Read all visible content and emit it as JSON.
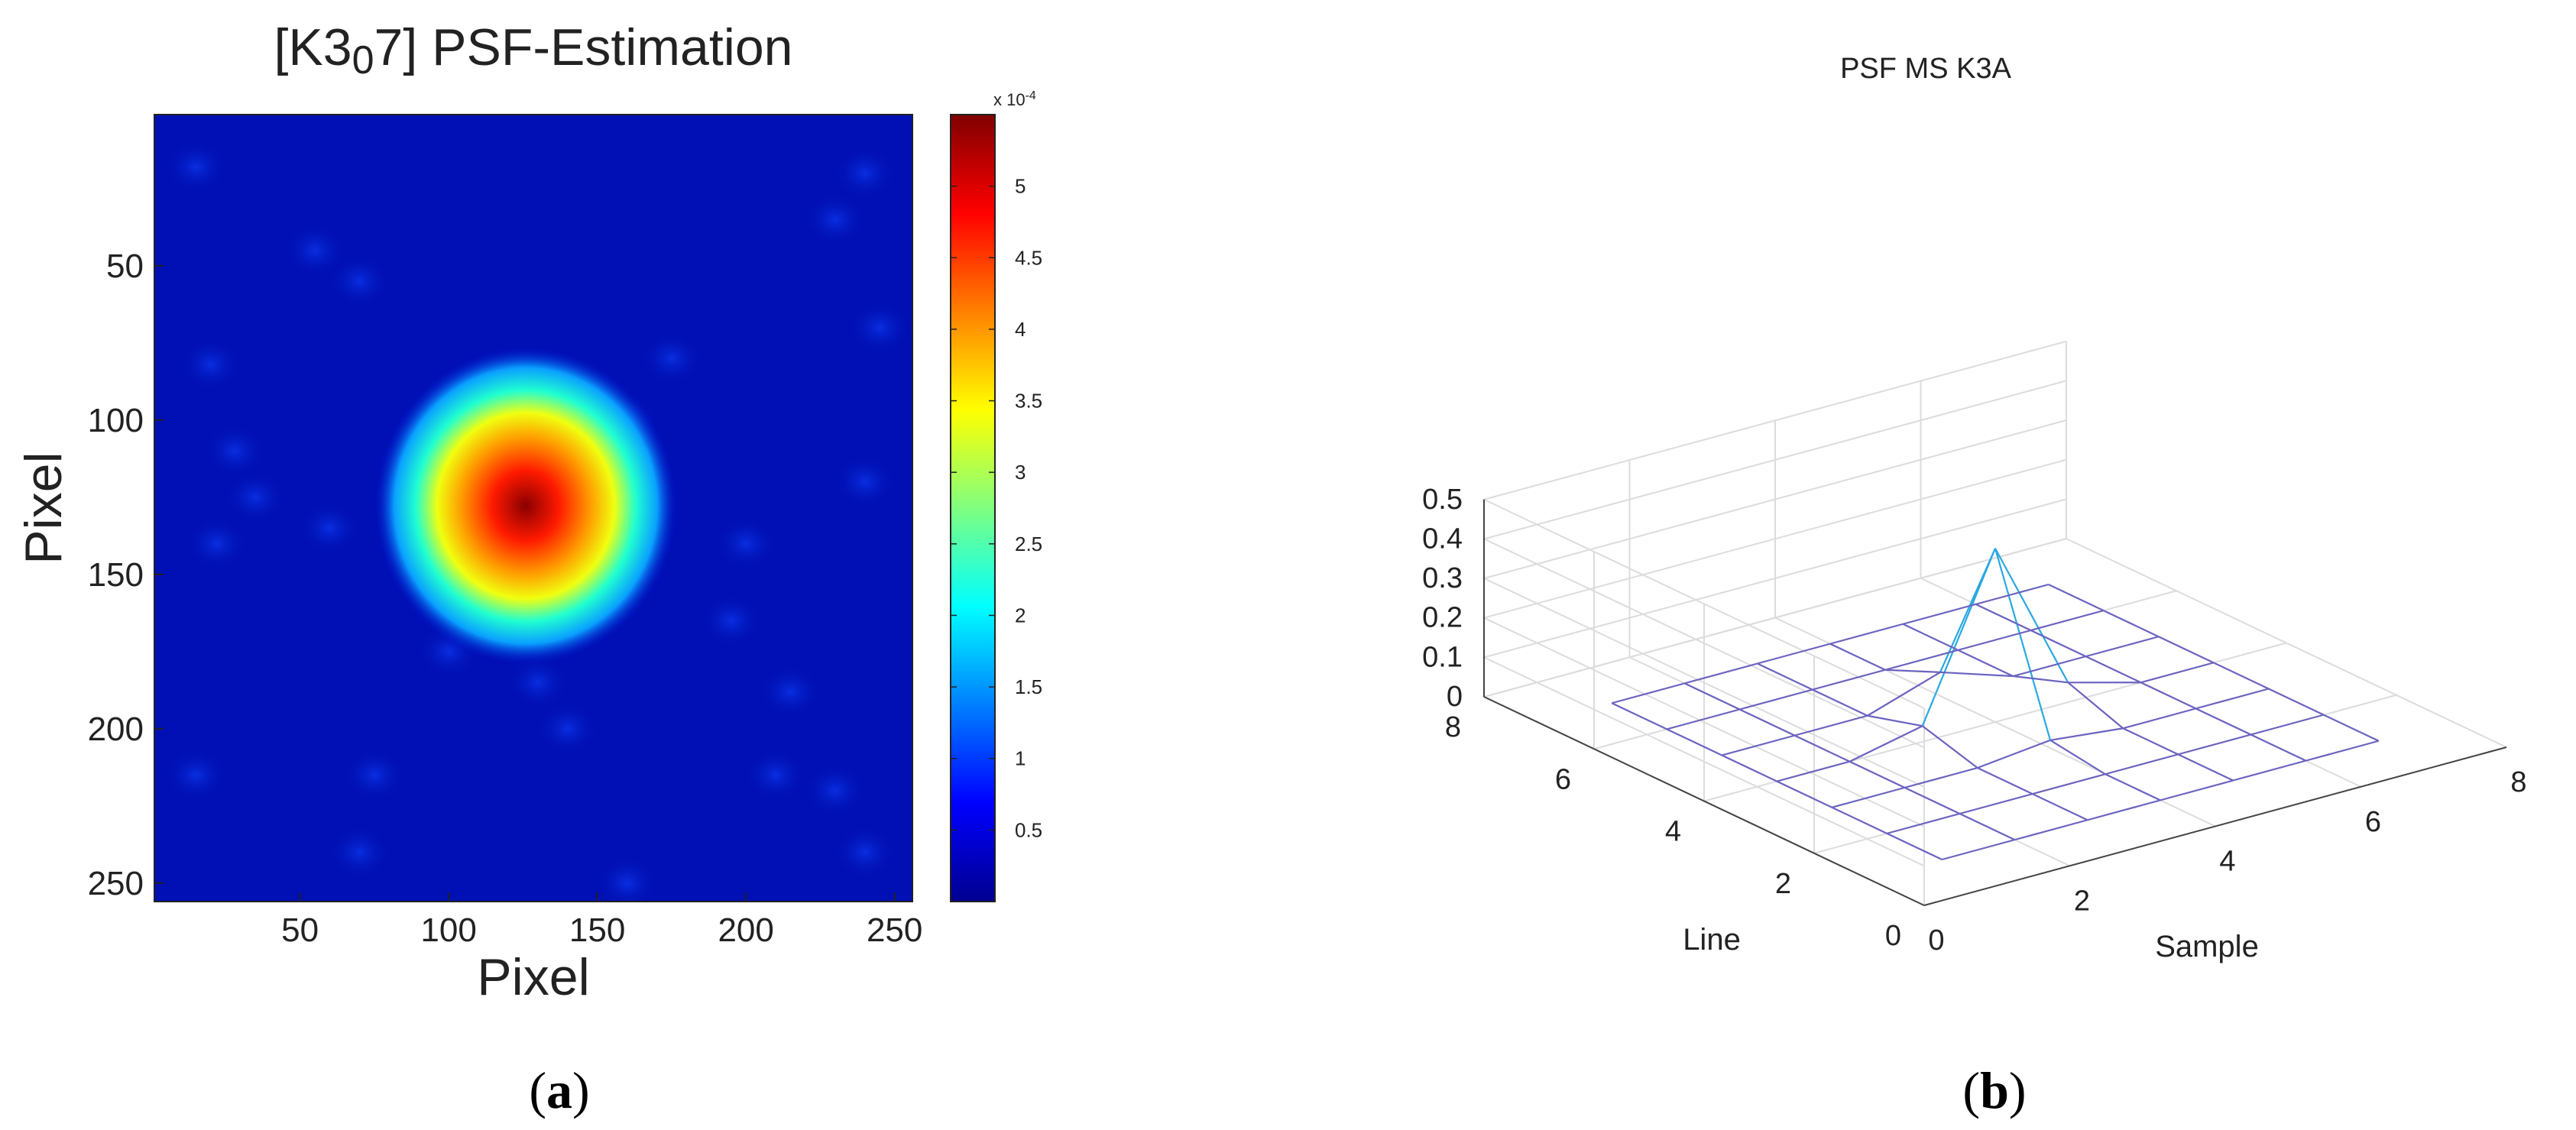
{
  "panel_a": {
    "title_prefix": "[K3",
    "title_sub": "0",
    "title_suffix": "7] PSF-Estimation",
    "xlabel": "Pixel",
    "ylabel": "Pixel",
    "xticks": [
      "50",
      "100",
      "150",
      "200",
      "250"
    ],
    "yticks": [
      "50",
      "100",
      "150",
      "200",
      "250"
    ],
    "colorbar_exponent": "x 10",
    "colorbar_exponent_power": "-4",
    "colorbar_ticks": [
      "0.5",
      "1",
      "1.5",
      "2",
      "2.5",
      "3",
      "3.5",
      "4",
      "4.5",
      "5"
    ],
    "caption_open": "(",
    "caption_letter": "a",
    "caption_close": ")"
  },
  "panel_b": {
    "title": "PSF MS K3A",
    "xlabel": "Sample",
    "ylabel": "Line",
    "zticks": [
      "0",
      "0.1",
      "0.2",
      "0.3",
      "0.4",
      "0.5"
    ],
    "sample_ticks": [
      "0",
      "2",
      "4",
      "6",
      "8"
    ],
    "line_ticks": [
      "0",
      "2",
      "4",
      "6",
      "8"
    ],
    "caption_open": "(",
    "caption_letter": "b",
    "caption_close": ")"
  },
  "chart_data": [
    {
      "type": "heatmap",
      "title": "[K3₀7] PSF-Estimation",
      "xlabel": "Pixel",
      "ylabel": "Pixel",
      "xlim": [
        1,
        256
      ],
      "ylim": [
        1,
        256
      ],
      "y_reversed": true,
      "colormap": "jet",
      "colorbar_range": [
        0,
        0.00055
      ],
      "colorbar_scale": "x 10^-4",
      "peak": {
        "x": 125,
        "y": 132,
        "value": 0.00055
      },
      "spot_extent": {
        "x": [
          105,
          148
        ],
        "y": [
          110,
          160
        ]
      },
      "background_value": 2e-05
    },
    {
      "type": "surface-mesh",
      "title": "PSF MS K3A",
      "xlabel": "Sample",
      "ylabel": "Line",
      "xlim": [
        0,
        8
      ],
      "ylim": [
        0,
        8
      ],
      "zlim": [
        0,
        0.5
      ],
      "grid": true,
      "x": [
        1,
        2,
        3,
        4,
        5,
        6,
        7
      ],
      "y": [
        1,
        2,
        3,
        4,
        5,
        6,
        7
      ],
      "z": [
        [
          0.0,
          0.0,
          0.0,
          0.0,
          0.0,
          0.0,
          0.0
        ],
        [
          0.0,
          0.0,
          0.0,
          0.0,
          0.0,
          0.0,
          0.0
        ],
        [
          0.0,
          0.0,
          0.0,
          0.02,
          0.0,
          0.0,
          0.0
        ],
        [
          0.0,
          0.0,
          0.04,
          0.44,
          0.05,
          0.0,
          0.0
        ],
        [
          0.0,
          0.0,
          0.0,
          0.06,
          0.0,
          0.0,
          0.0
        ],
        [
          0.0,
          0.0,
          0.0,
          0.0,
          0.0,
          0.0,
          0.0
        ],
        [
          0.0,
          0.0,
          0.0,
          0.0,
          0.0,
          0.0,
          0.0
        ]
      ],
      "line_color": "#6b63c0",
      "peak_line_color": "#2aa8e0"
    }
  ]
}
